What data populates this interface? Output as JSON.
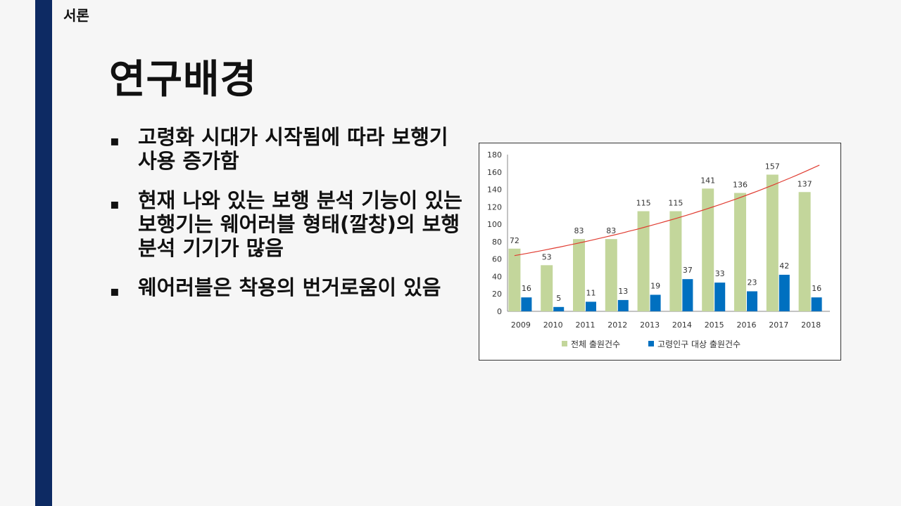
{
  "section": "서론",
  "title": "연구배경",
  "bullets": [
    {
      "marker": "▪",
      "text": "고령화 시대가 시작됨에 따라 보행기 사용 증가함"
    },
    {
      "marker": "▪",
      "text": "현재 나와 있는 보행 분석 기능이 있는 보행기는 웨어러블 형태(깔창)의 보행 분석 기기가 많음"
    },
    {
      "marker": "▪",
      "text": "웨어러블은 착용의 번거로움이 있음"
    }
  ],
  "chart_data": {
    "type": "bar",
    "categories": [
      "2009",
      "2010",
      "2011",
      "2012",
      "2013",
      "2014",
      "2015",
      "2016",
      "2017",
      "2018"
    ],
    "series": [
      {
        "name": "전체 출원건수",
        "color": "#c3d69b",
        "values": [
          72,
          53,
          83,
          83,
          115,
          115,
          141,
          136,
          157,
          137
        ]
      },
      {
        "name": "고령인구 대상 출원건수",
        "color": "#0070c0",
        "values": [
          16,
          5,
          11,
          13,
          19,
          37,
          33,
          23,
          42,
          16
        ]
      }
    ],
    "trendline": {
      "color": "#e03c31",
      "from": 64,
      "to": 168
    },
    "ylim": [
      0,
      180
    ],
    "yticks": [
      "0",
      "20",
      "40",
      "60",
      "80",
      "100",
      "120",
      "140",
      "160",
      "180"
    ],
    "legend": "bottom"
  }
}
